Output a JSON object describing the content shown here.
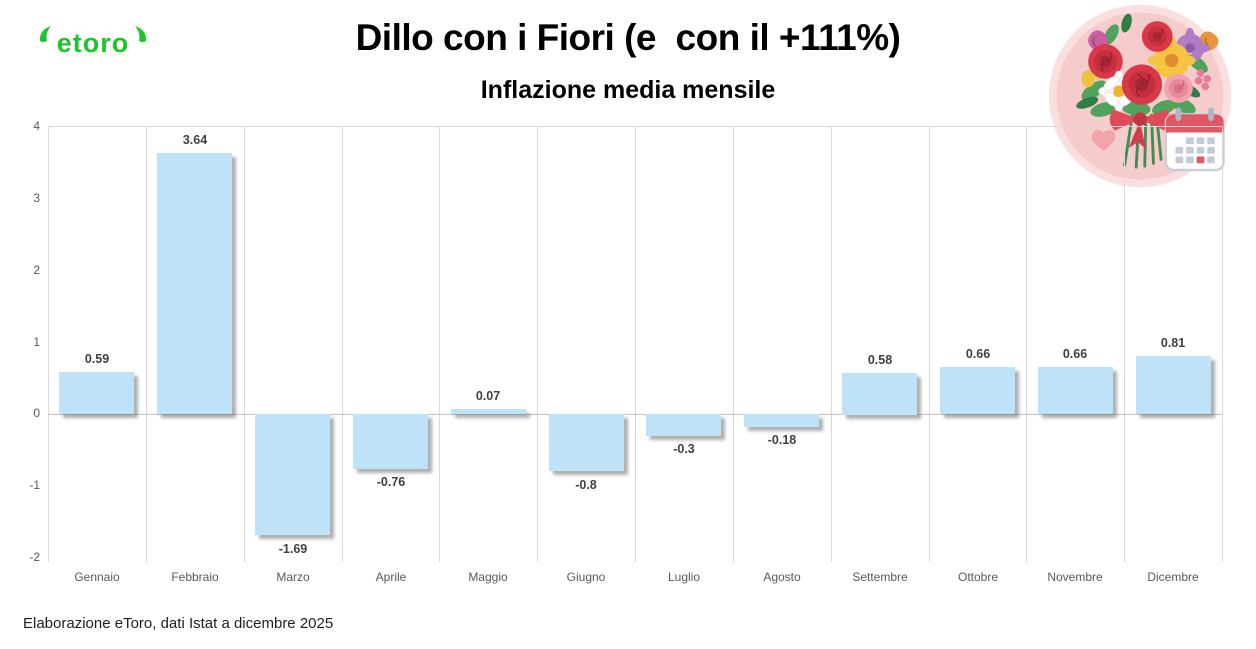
{
  "brand": {
    "logo_text": "etoro",
    "logo_color": "#1DC52C"
  },
  "header": {
    "title": "Dillo con i Fiori (e  con il +111%)",
    "subtitle": "Inflazione media mensile"
  },
  "footer": {
    "source_note": "Elaborazione eToro, dati Istat a dicembre 2025"
  },
  "chart_data": {
    "type": "bar",
    "title": "Inflazione media mensile",
    "categories": [
      "Gennaio",
      "Febbraio",
      "Marzo",
      "Aprile",
      "Maggio",
      "Giugno",
      "Luglio",
      "Agosto",
      "Settembre",
      "Ottobre",
      "Novembre",
      "Dicembre"
    ],
    "values": [
      0.59,
      3.64,
      -1.69,
      -0.76,
      0.07,
      -0.8,
      -0.3,
      -0.18,
      0.58,
      0.66,
      0.66,
      0.81
    ],
    "value_labels": [
      "0.59",
      "3.64",
      "-1.69",
      "-0.76",
      "0.07",
      "-0.8",
      "-0.3",
      "-0.18",
      "0.58",
      "0.66",
      "0.66",
      "0.81"
    ],
    "xlabel": "",
    "ylabel": "",
    "ylim": [
      -2,
      4
    ],
    "y_ticks": [
      4,
      3,
      2,
      1,
      0,
      -1,
      -2
    ],
    "bar_color": "#BEE3F8",
    "grid": "vertical category gridlines + zero line + top line",
    "legend": "none"
  },
  "badge": {
    "description": "flower bouquet with calendar in pink circle"
  }
}
